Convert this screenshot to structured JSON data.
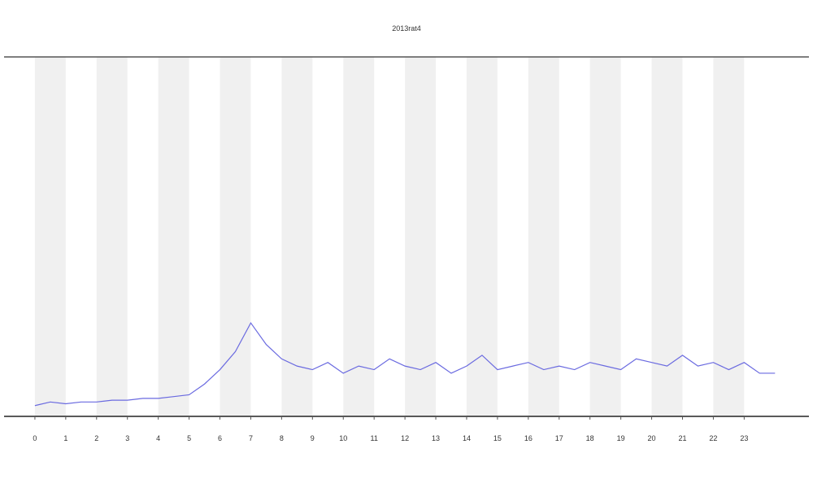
{
  "chart_data": {
    "type": "line",
    "title": "2013rat4",
    "x": [
      0,
      0.5,
      1,
      1.5,
      2,
      2.5,
      3,
      3.5,
      4,
      4.5,
      5,
      5.5,
      6,
      6.5,
      7,
      7.5,
      8,
      8.5,
      9,
      9.5,
      10,
      10.5,
      11,
      11.5,
      12,
      12.5,
      13,
      13.5,
      14,
      14.5,
      15,
      15.5,
      16,
      16.5,
      17,
      17.5,
      18,
      18.5,
      19,
      19.5,
      20,
      20.5,
      21,
      21.5,
      22,
      22.5,
      23,
      23.5,
      24
    ],
    "series": [
      {
        "color": "#6a6ae0",
        "values": [
          3,
          4,
          3.5,
          4,
          4,
          4.5,
          4.5,
          5,
          5,
          5.5,
          6,
          9,
          13,
          18,
          26,
          20,
          16,
          14,
          13,
          15,
          12,
          14,
          13,
          16,
          14,
          13,
          15,
          12,
          14,
          17,
          13,
          14,
          15,
          13,
          14,
          13,
          15,
          14,
          13,
          16,
          15,
          14,
          17,
          14,
          15,
          13,
          15,
          12,
          12
        ]
      }
    ],
    "xlim": [
      -1,
      25.1
    ],
    "ylim": [
      0,
      100
    ],
    "xticks": [
      0,
      1,
      2,
      3,
      4,
      5,
      6,
      7,
      8,
      9,
      10,
      11,
      12,
      13,
      14,
      15,
      16,
      17,
      18,
      19,
      20,
      21,
      22,
      23
    ]
  }
}
